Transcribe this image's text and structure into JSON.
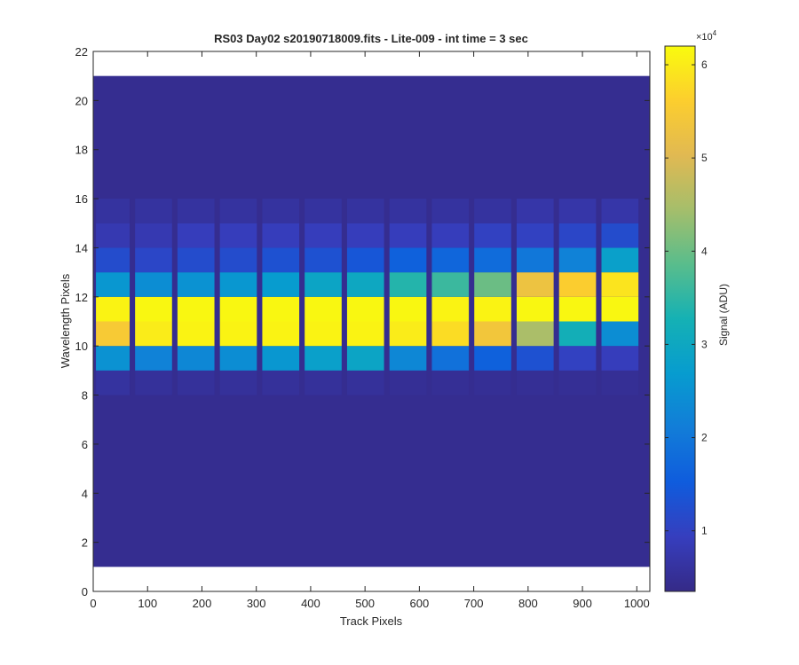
{
  "chart_data": {
    "type": "heatmap",
    "title": "RS03 Day02  s20190718009.fits - Lite-009 - int time = 3 sec",
    "xlabel": "Track Pixels",
    "ylabel": "Wavelength Pixels",
    "xlim": [
      0,
      1024
    ],
    "ylim": [
      0,
      22
    ],
    "xticks": [
      0,
      100,
      200,
      300,
      400,
      500,
      600,
      700,
      800,
      900,
      1000
    ],
    "yticks": [
      0,
      2,
      4,
      6,
      8,
      10,
      12,
      14,
      16,
      18,
      20,
      22
    ],
    "image_extent": {
      "x": [
        0,
        1024
      ],
      "y": [
        1,
        21
      ]
    },
    "background_adu": 4500,
    "colorbar": {
      "label": "Signal (ADU)",
      "exponent_label": "×10",
      "exponent": "4",
      "clim": [
        0.35,
        6.2
      ],
      "ticks": [
        1,
        2,
        3,
        4,
        5,
        6
      ],
      "colormap": "parula"
    },
    "row_y_starts": [
      8,
      9,
      10,
      11,
      12,
      13,
      14,
      15
    ],
    "fibers": [
      {
        "x_start": 5,
        "x_end": 67,
        "rows_adu": [
          6000,
          25000,
          55000,
          61000,
          26000,
          12000,
          8000,
          6000
        ]
      },
      {
        "x_start": 77,
        "x_end": 145,
        "rows_adu": [
          5500,
          22000,
          60000,
          61500,
          24000,
          11000,
          8000,
          6000
        ]
      },
      {
        "x_start": 155,
        "x_end": 223,
        "rows_adu": [
          5500,
          23000,
          61000,
          61500,
          25000,
          12000,
          9000,
          6000
        ]
      },
      {
        "x_start": 233,
        "x_end": 301,
        "rows_adu": [
          5500,
          24000,
          61000,
          61500,
          26000,
          12000,
          9000,
          6000
        ]
      },
      {
        "x_start": 311,
        "x_end": 379,
        "rows_adu": [
          5500,
          26000,
          61000,
          61500,
          27000,
          13000,
          9000,
          6000
        ]
      },
      {
        "x_start": 389,
        "x_end": 457,
        "rows_adu": [
          5500,
          28000,
          61000,
          61500,
          29000,
          13000,
          9000,
          6000
        ]
      },
      {
        "x_start": 467,
        "x_end": 535,
        "rows_adu": [
          5500,
          29000,
          61000,
          61500,
          30000,
          14000,
          9000,
          6000
        ]
      },
      {
        "x_start": 545,
        "x_end": 613,
        "rows_adu": [
          5000,
          23000,
          60000,
          61500,
          34000,
          16000,
          9000,
          6000
        ]
      },
      {
        "x_start": 623,
        "x_end": 691,
        "rows_adu": [
          5000,
          19000,
          58000,
          61000,
          36000,
          17000,
          9000,
          6000
        ]
      },
      {
        "x_start": 701,
        "x_end": 769,
        "rows_adu": [
          5000,
          16000,
          54000,
          61000,
          40000,
          18000,
          10000,
          6000
        ]
      },
      {
        "x_start": 779,
        "x_end": 847,
        "rows_adu": [
          5000,
          13000,
          45000,
          61500,
          53000,
          20000,
          10000,
          7000
        ]
      },
      {
        "x_start": 857,
        "x_end": 925,
        "rows_adu": [
          5000,
          10000,
          32000,
          61500,
          56000,
          22000,
          11000,
          7000
        ]
      },
      {
        "x_start": 935,
        "x_end": 1003,
        "rows_adu": [
          5000,
          9000,
          24000,
          61500,
          59000,
          28000,
          12000,
          7000
        ]
      }
    ]
  }
}
